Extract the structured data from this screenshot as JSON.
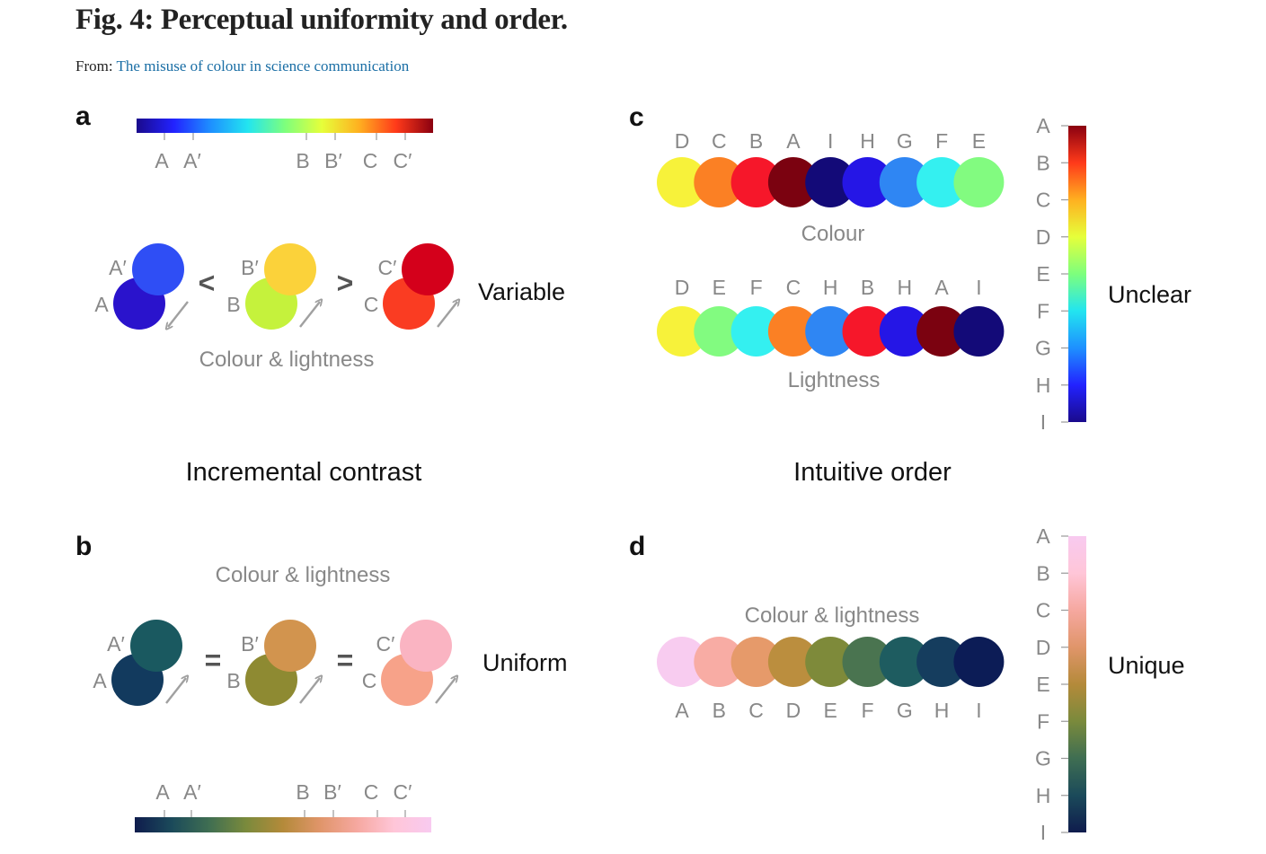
{
  "figure_title": "Fig. 4: Perceptual uniformity and order.",
  "from_label": "From:",
  "source_link": "The misuse of colour in science communication",
  "colors": {
    "link": "#1a6ea5",
    "jet_stops": [
      "#1a0a8c",
      "#2222ff",
      "#1e90ff",
      "#22e5f0",
      "#7dff7d",
      "#e6ff3a",
      "#ffb020",
      "#ff3a1a",
      "#8a0010"
    ],
    "batlow_stops": [
      "#0f1c4d",
      "#1b4a5a",
      "#3f6e52",
      "#7a8a3c",
      "#b48a3a",
      "#e0956a",
      "#f6a8a0",
      "#ffc6d8",
      "#f8caf0"
    ]
  },
  "panel_a": {
    "label": "a",
    "ticks": [
      "A",
      "A′",
      "B",
      "B′",
      "C",
      "C′"
    ],
    "pairs": [
      {
        "small": "A",
        "big": "A′",
        "c_small": "#2a13cc",
        "c_big": "#2f4ef5"
      },
      {
        "small": "B",
        "big": "B′",
        "c_small": "#c5f23c",
        "c_big": "#fbd23a"
      },
      {
        "small": "C",
        "big": "C′",
        "c_small": "#fa3c22",
        "c_big": "#d4001b"
      }
    ],
    "operators": [
      "<",
      ">"
    ],
    "verdict": "Variable",
    "caption": "Colour & lightness"
  },
  "panel_b": {
    "label": "b",
    "caption": "Colour & lightness",
    "pairs": [
      {
        "small": "A",
        "big": "A′",
        "c_small": "#123a5e",
        "c_big": "#1a5960"
      },
      {
        "small": "B",
        "big": "B′",
        "c_small": "#8e8a32",
        "c_big": "#d2944e"
      },
      {
        "small": "C",
        "big": "C′",
        "c_small": "#f7a289",
        "c_big": "#fab4c2"
      }
    ],
    "operators": [
      "=",
      "="
    ],
    "verdict": "Uniform",
    "ticks": [
      "A",
      "A′",
      "B",
      "B′",
      "C",
      "C′"
    ]
  },
  "heading_left": "Incremental contrast",
  "heading_right": "Intuitive order",
  "panel_c": {
    "label": "c",
    "row1_letters": [
      "D",
      "C",
      "B",
      "A",
      "I",
      "H",
      "G",
      "F",
      "E"
    ],
    "row1_colors": [
      "#f7f23a",
      "#fb8024",
      "#f6172a",
      "#7b0210",
      "#130a78",
      "#2516e6",
      "#2f86f3",
      "#34f0f0",
      "#82fb80"
    ],
    "row1_caption": "Colour",
    "row2_letters": [
      "D",
      "E",
      "F",
      "C",
      "H",
      "B",
      "H",
      "A",
      "I"
    ],
    "row2_colors": [
      "#f7f23a",
      "#82fb80",
      "#34f0f0",
      "#fb8024",
      "#2f86f3",
      "#f6172a",
      "#2516e6",
      "#7b0210",
      "#130a78"
    ],
    "row2_caption": "Lightness",
    "bar_ticks": [
      "A",
      "B",
      "C",
      "D",
      "E",
      "F",
      "G",
      "H",
      "I"
    ],
    "verdict": "Unclear"
  },
  "panel_d": {
    "label": "d",
    "caption": "Colour & lightness",
    "colors": [
      "#f8ccf0",
      "#f8aca4",
      "#e69a6a",
      "#bb8e3e",
      "#7e8a3a",
      "#4a7450",
      "#1e5c60",
      "#153d5e",
      "#0c1c56"
    ],
    "letters": [
      "A",
      "B",
      "C",
      "D",
      "E",
      "F",
      "G",
      "H",
      "I"
    ],
    "bar_ticks": [
      "A",
      "B",
      "C",
      "D",
      "E",
      "F",
      "G",
      "H",
      "I"
    ],
    "verdict": "Unique"
  }
}
